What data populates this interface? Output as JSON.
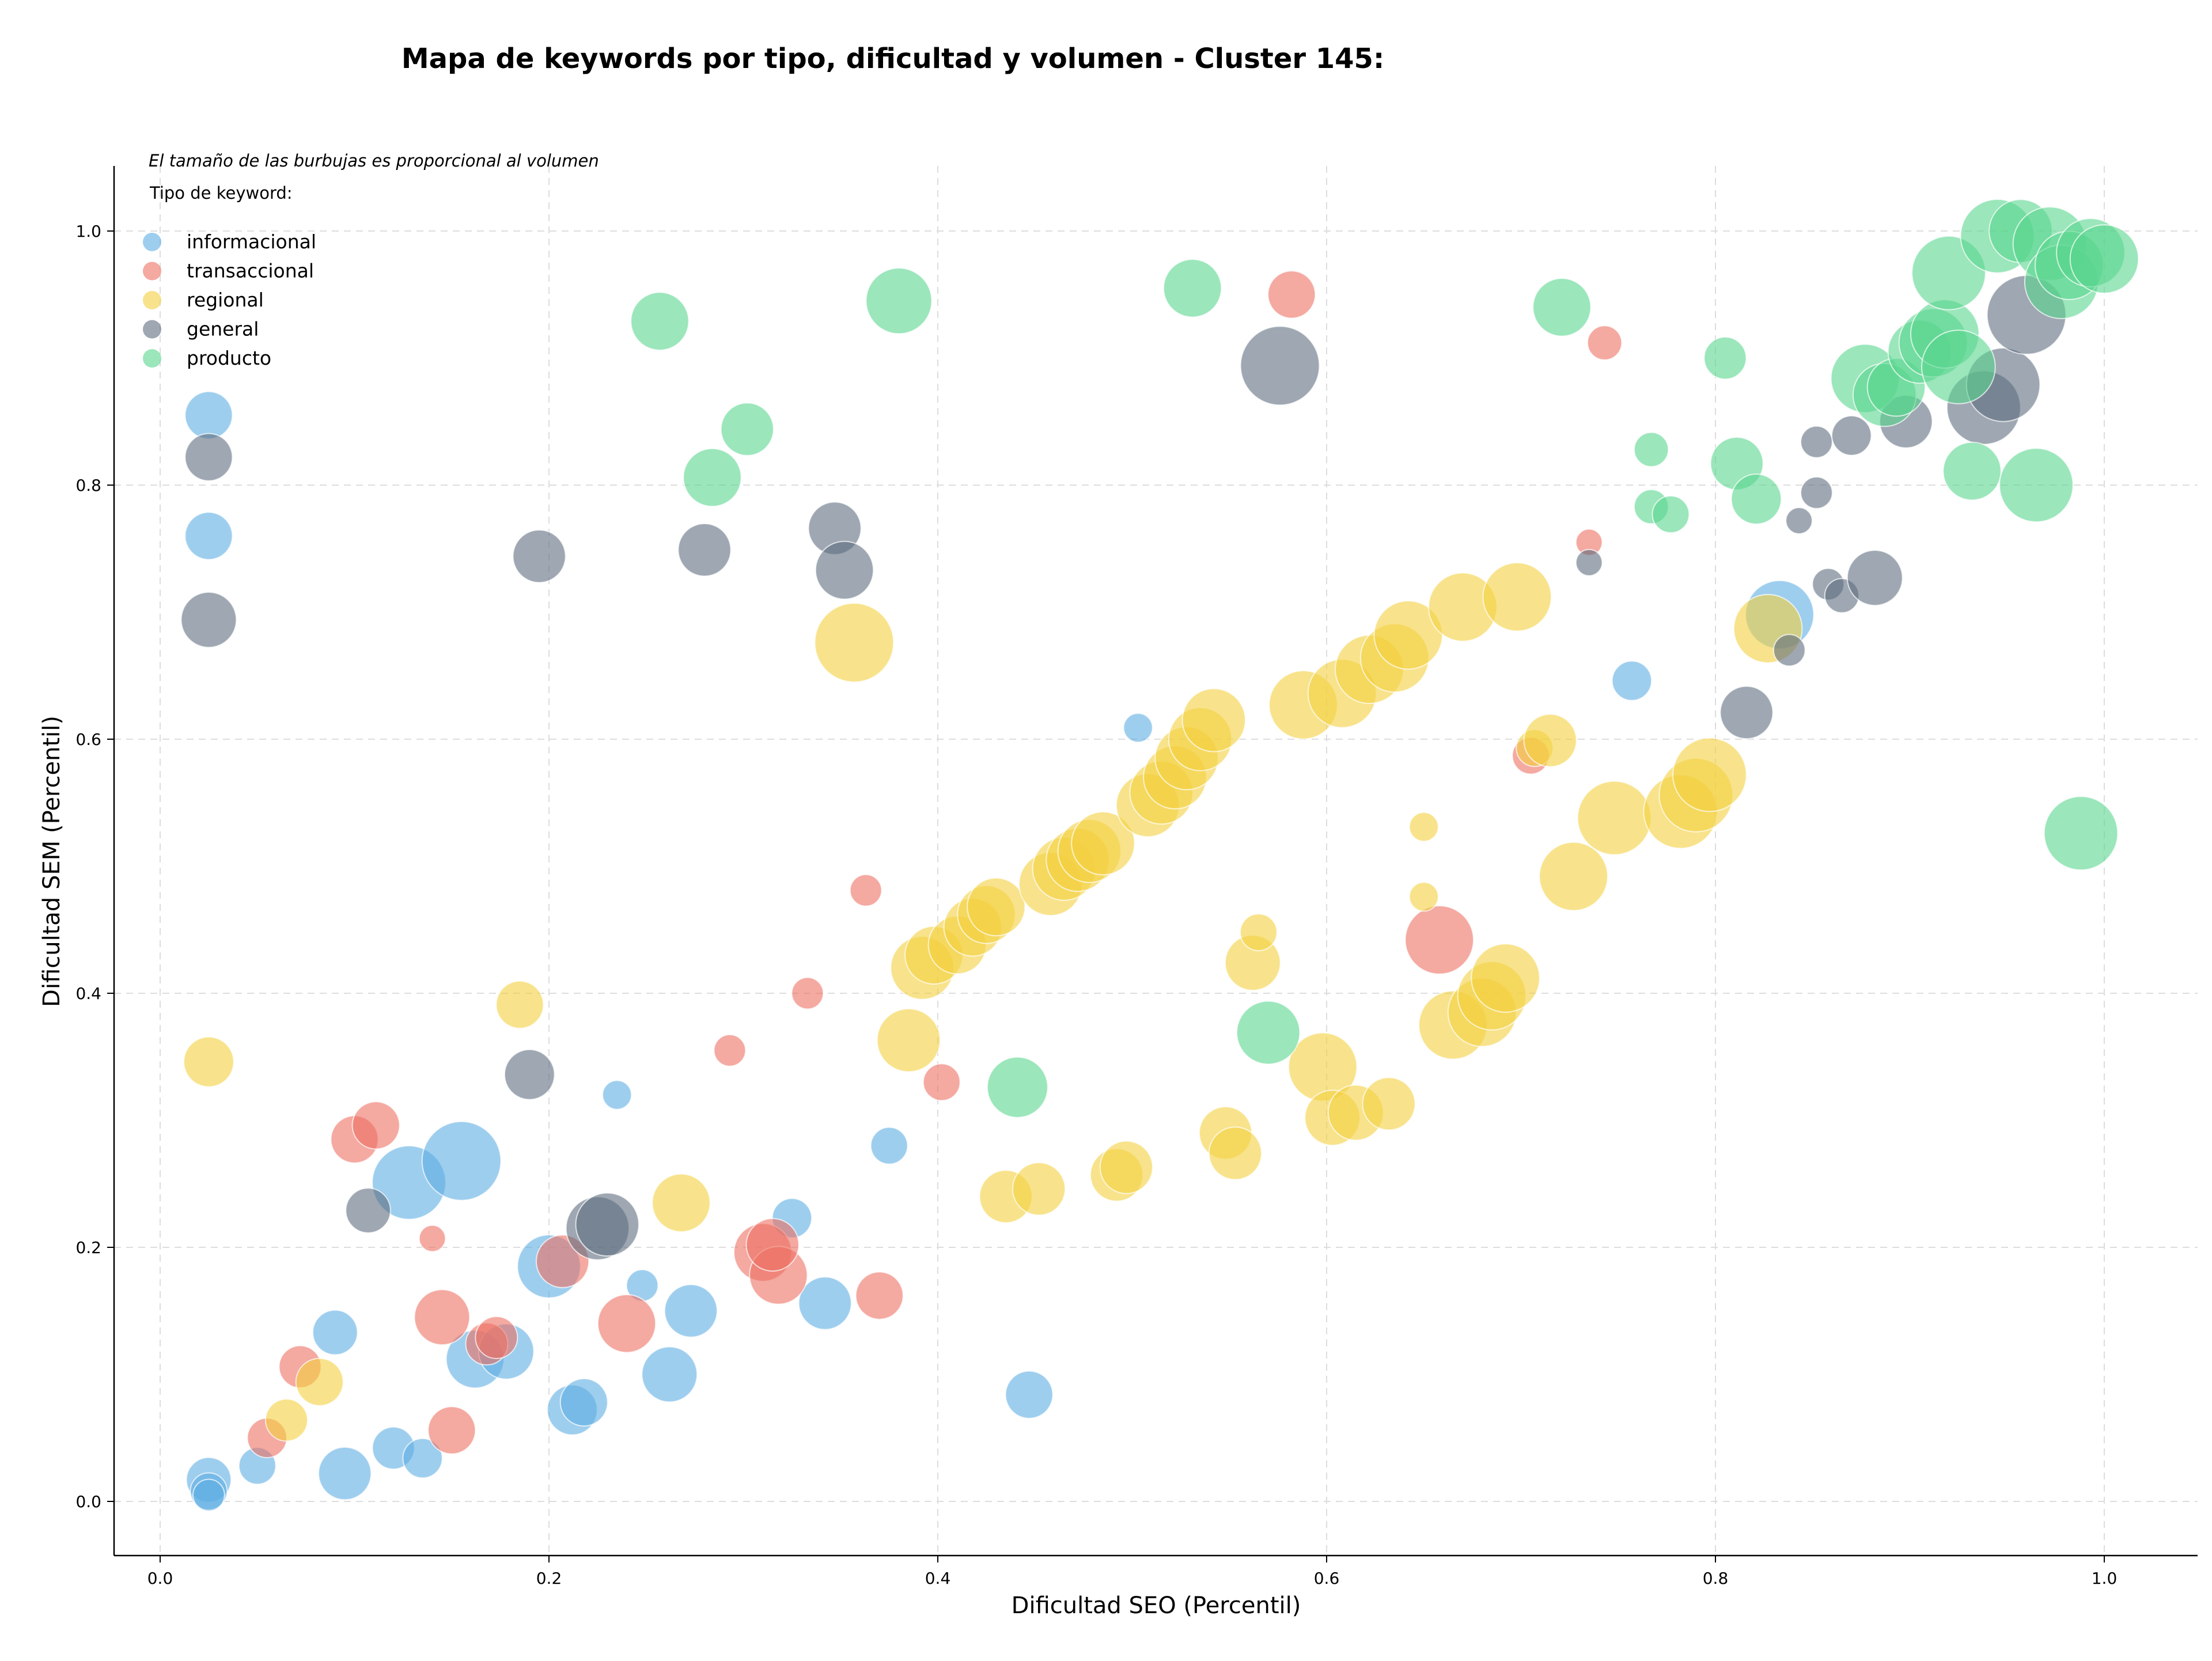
{
  "chart_data": {
    "type": "scatter",
    "title": "Mapa de keywords por tipo, dificultad y volumen - Cluster 145:",
    "xlabel": "Dificultad SEO (Percentil)",
    "ylabel": "Dificultad SEM (Percentil)",
    "xlim": [
      -0.02,
      1.05
    ],
    "ylim": [
      -0.045,
      1.05
    ],
    "xticks": [
      "0.0",
      "0.2",
      "0.4",
      "0.6",
      "0.8",
      "1.0"
    ],
    "yticks": [
      "0.0",
      "0.2",
      "0.4",
      "0.6",
      "0.8",
      "1.0"
    ],
    "grid": true,
    "size_note": "El tamaño de las burbujas es proporcional al volumen",
    "legend_title": "Tipo de keyword:",
    "legend_position": "top-left",
    "series": [
      {
        "name": "informacional",
        "color": "#5DADE2",
        "points": [
          [
            0.025,
            0.855,
            18
          ],
          [
            0.025,
            0.76,
            18
          ],
          [
            0.025,
            0.017,
            17
          ],
          [
            0.025,
            0.008,
            14
          ],
          [
            0.025,
            0.005,
            12
          ],
          [
            0.05,
            0.028,
            14
          ],
          [
            0.09,
            0.133,
            17
          ],
          [
            0.095,
            0.022,
            20
          ],
          [
            0.12,
            0.042,
            16
          ],
          [
            0.135,
            0.034,
            15
          ],
          [
            0.128,
            0.251,
            28
          ],
          [
            0.155,
            0.268,
            30
          ],
          [
            0.162,
            0.112,
            22
          ],
          [
            0.178,
            0.118,
            21
          ],
          [
            0.2,
            0.185,
            24
          ],
          [
            0.212,
            0.072,
            19
          ],
          [
            0.218,
            0.078,
            18
          ],
          [
            0.235,
            0.32,
            11
          ],
          [
            0.248,
            0.17,
            12
          ],
          [
            0.262,
            0.1,
            21
          ],
          [
            0.273,
            0.15,
            20
          ],
          [
            0.325,
            0.223,
            15
          ],
          [
            0.342,
            0.156,
            20
          ],
          [
            0.375,
            0.28,
            14
          ],
          [
            0.447,
            0.084,
            18
          ],
          [
            0.503,
            0.609,
            11
          ],
          [
            0.757,
            0.646,
            15
          ],
          [
            0.833,
            0.698,
            26
          ]
        ]
      },
      {
        "name": "transaccional",
        "color": "#EC7063",
        "points": [
          [
            0.055,
            0.05,
            15
          ],
          [
            0.072,
            0.106,
            16
          ],
          [
            0.1,
            0.285,
            18
          ],
          [
            0.111,
            0.296,
            18
          ],
          [
            0.14,
            0.207,
            10
          ],
          [
            0.145,
            0.145,
            21
          ],
          [
            0.15,
            0.056,
            18
          ],
          [
            0.168,
            0.124,
            16
          ],
          [
            0.173,
            0.129,
            16
          ],
          [
            0.207,
            0.189,
            20
          ],
          [
            0.24,
            0.14,
            22
          ],
          [
            0.293,
            0.355,
            12
          ],
          [
            0.31,
            0.196,
            22
          ],
          [
            0.318,
            0.178,
            22
          ],
          [
            0.315,
            0.202,
            20
          ],
          [
            0.333,
            0.4,
            12
          ],
          [
            0.363,
            0.481,
            12
          ],
          [
            0.37,
            0.162,
            18
          ],
          [
            0.402,
            0.33,
            14
          ],
          [
            0.582,
            0.95,
            18
          ],
          [
            0.658,
            0.442,
            26
          ],
          [
            0.705,
            0.587,
            14
          ],
          [
            0.735,
            0.755,
            10
          ],
          [
            0.743,
            0.912,
            13
          ]
        ]
      },
      {
        "name": "regional",
        "color": "#F4D03F",
        "points": [
          [
            0.025,
            0.346,
            19
          ],
          [
            0.065,
            0.064,
            16
          ],
          [
            0.082,
            0.094,
            18
          ],
          [
            0.185,
            0.391,
            18
          ],
          [
            0.268,
            0.235,
            22
          ],
          [
            0.357,
            0.676,
            30
          ],
          [
            0.385,
            0.363,
            24
          ],
          [
            0.392,
            0.42,
            24
          ],
          [
            0.398,
            0.43,
            22
          ],
          [
            0.41,
            0.438,
            22
          ],
          [
            0.418,
            0.452,
            22
          ],
          [
            0.425,
            0.462,
            22
          ],
          [
            0.43,
            0.468,
            22
          ],
          [
            0.435,
            0.24,
            20
          ],
          [
            0.452,
            0.246,
            20
          ],
          [
            0.458,
            0.486,
            24
          ],
          [
            0.465,
            0.498,
            24
          ],
          [
            0.472,
            0.505,
            24
          ],
          [
            0.478,
            0.512,
            24
          ],
          [
            0.485,
            0.518,
            24
          ],
          [
            0.492,
            0.257,
            20
          ],
          [
            0.497,
            0.263,
            20
          ],
          [
            0.508,
            0.548,
            24
          ],
          [
            0.515,
            0.558,
            24
          ],
          [
            0.522,
            0.57,
            24
          ],
          [
            0.528,
            0.585,
            24
          ],
          [
            0.535,
            0.6,
            24
          ],
          [
            0.542,
            0.615,
            24
          ],
          [
            0.548,
            0.29,
            20
          ],
          [
            0.553,
            0.274,
            20
          ],
          [
            0.562,
            0.424,
            21
          ],
          [
            0.565,
            0.448,
            14
          ],
          [
            0.588,
            0.627,
            26
          ],
          [
            0.598,
            0.342,
            26
          ],
          [
            0.603,
            0.302,
            21
          ],
          [
            0.615,
            0.306,
            21
          ],
          [
            0.608,
            0.636,
            26
          ],
          [
            0.622,
            0.655,
            26
          ],
          [
            0.632,
            0.313,
            20
          ],
          [
            0.635,
            0.664,
            26
          ],
          [
            0.642,
            0.682,
            26
          ],
          [
            0.65,
            0.531,
            11
          ],
          [
            0.65,
            0.476,
            11
          ],
          [
            0.665,
            0.375,
            26
          ],
          [
            0.67,
            0.704,
            26
          ],
          [
            0.68,
            0.385,
            26
          ],
          [
            0.685,
            0.398,
            26
          ],
          [
            0.692,
            0.412,
            26
          ],
          [
            0.698,
            0.712,
            26
          ],
          [
            0.707,
            0.593,
            14
          ],
          [
            0.715,
            0.599,
            20
          ],
          [
            0.727,
            0.492,
            26
          ],
          [
            0.748,
            0.538,
            28
          ],
          [
            0.782,
            0.543,
            28
          ],
          [
            0.79,
            0.556,
            28
          ],
          [
            0.797,
            0.572,
            28
          ],
          [
            0.827,
            0.687,
            26
          ]
        ]
      },
      {
        "name": "general",
        "color": "#5D6D7E",
        "points": [
          [
            0.025,
            0.822,
            18
          ],
          [
            0.025,
            0.694,
            21
          ],
          [
            0.107,
            0.229,
            17
          ],
          [
            0.19,
            0.336,
            19
          ],
          [
            0.195,
            0.744,
            20
          ],
          [
            0.225,
            0.215,
            24
          ],
          [
            0.23,
            0.218,
            24
          ],
          [
            0.28,
            0.749,
            20
          ],
          [
            0.347,
            0.766,
            20
          ],
          [
            0.352,
            0.733,
            22
          ],
          [
            0.576,
            0.894,
            30
          ],
          [
            0.735,
            0.739,
            10
          ],
          [
            0.816,
            0.621,
            20
          ],
          [
            0.838,
            0.67,
            12
          ],
          [
            0.843,
            0.772,
            10
          ],
          [
            0.852,
            0.834,
            12
          ],
          [
            0.852,
            0.794,
            12
          ],
          [
            0.858,
            0.722,
            12
          ],
          [
            0.865,
            0.713,
            13
          ],
          [
            0.87,
            0.839,
            15
          ],
          [
            0.882,
            0.727,
            21
          ],
          [
            0.898,
            0.85,
            20
          ],
          [
            0.938,
            0.861,
            28
          ],
          [
            0.948,
            0.879,
            28
          ],
          [
            0.96,
            0.934,
            30
          ]
        ]
      },
      {
        "name": "producto",
        "color": "#58D68D",
        "points": [
          [
            0.257,
            0.929,
            22
          ],
          [
            0.284,
            0.806,
            22
          ],
          [
            0.302,
            0.844,
            20
          ],
          [
            0.38,
            0.945,
            25
          ],
          [
            0.441,
            0.326,
            23
          ],
          [
            0.531,
            0.955,
            22
          ],
          [
            0.57,
            0.369,
            24
          ],
          [
            0.721,
            0.94,
            22
          ],
          [
            0.767,
            0.828,
            13
          ],
          [
            0.767,
            0.783,
            13
          ],
          [
            0.777,
            0.777,
            14
          ],
          [
            0.805,
            0.9,
            16
          ],
          [
            0.811,
            0.817,
            20
          ],
          [
            0.821,
            0.789,
            19
          ],
          [
            0.877,
            0.884,
            26
          ],
          [
            0.887,
            0.871,
            24
          ],
          [
            0.893,
            0.877,
            22
          ],
          [
            0.905,
            0.905,
            24
          ],
          [
            0.912,
            0.912,
            26
          ],
          [
            0.918,
            0.919,
            26
          ],
          [
            0.925,
            0.893,
            28
          ],
          [
            0.92,
            0.967,
            28
          ],
          [
            0.932,
            0.811,
            22
          ],
          [
            0.945,
            0.996,
            28
          ],
          [
            0.957,
            1.0,
            24
          ],
          [
            0.965,
            0.8,
            28
          ],
          [
            0.972,
            0.99,
            28
          ],
          [
            0.978,
            0.96,
            28
          ],
          [
            0.982,
            0.973,
            26
          ],
          [
            0.993,
            0.983,
            26
          ],
          [
            1.0,
            0.978,
            26
          ],
          [
            0.988,
            0.526,
            28
          ]
        ]
      }
    ]
  }
}
